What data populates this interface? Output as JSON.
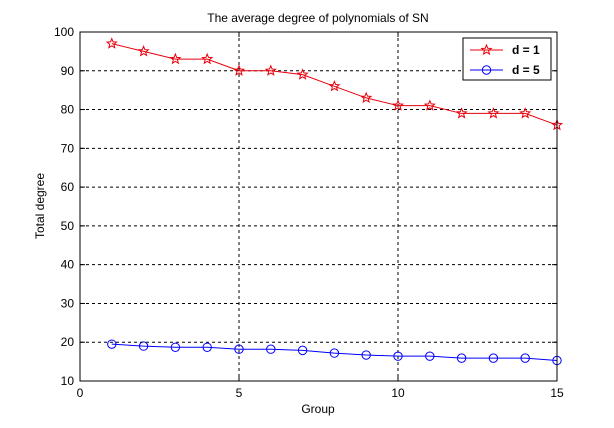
{
  "chart_data": {
    "type": "line",
    "title": "The average degree of polynomials of SN",
    "xlabel": "Group",
    "ylabel": "Total degree",
    "xlim": [
      0,
      15
    ],
    "ylim": [
      10,
      100
    ],
    "xticks": [
      0,
      5,
      10,
      15
    ],
    "yticks": [
      10,
      20,
      30,
      40,
      50,
      60,
      70,
      80,
      90,
      100
    ],
    "grid": true,
    "grid_style": "dashed",
    "legend_position": "top-right",
    "x": [
      1,
      2,
      3,
      4,
      5,
      6,
      7,
      8,
      9,
      10,
      11,
      12,
      13,
      14,
      15
    ],
    "series": [
      {
        "name": "d = 1",
        "color": "#e8000b",
        "marker": "pentagram",
        "values": [
          97,
          95,
          93,
          93,
          90,
          90,
          89,
          86,
          83,
          81,
          81,
          79,
          79,
          79,
          76
        ]
      },
      {
        "name": "d = 5",
        "color": "#0000ff",
        "marker": "circle",
        "values": [
          19.5,
          19,
          18.7,
          18.7,
          18.2,
          18.2,
          17.9,
          17.2,
          16.7,
          16.4,
          16.4,
          15.9,
          15.9,
          15.9,
          15.3
        ]
      }
    ]
  }
}
